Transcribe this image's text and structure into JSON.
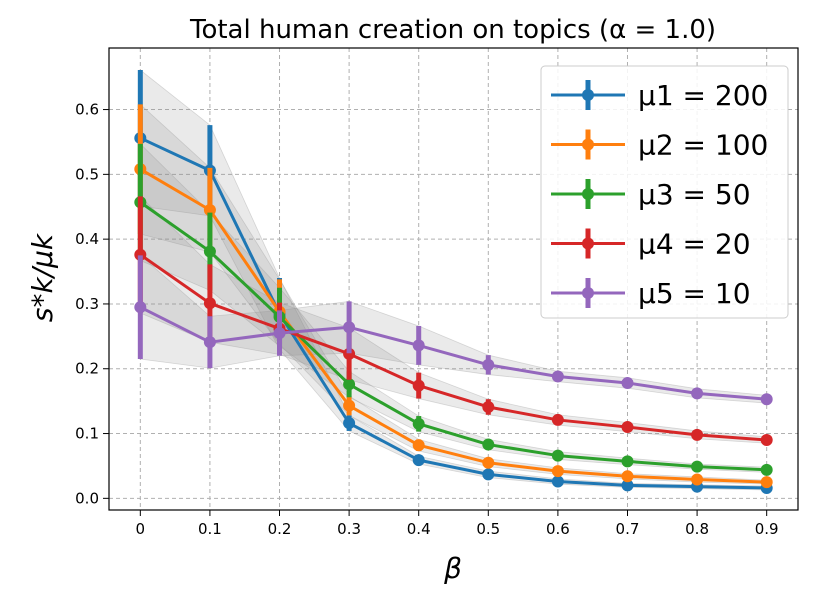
{
  "chart_data": {
    "type": "line",
    "title": "Total human creation on topics (α = 1.0)",
    "xlabel": "β",
    "ylabel": "s*k/μk",
    "x": [
      0,
      0.1,
      0.2,
      0.3,
      0.4,
      0.5,
      0.6,
      0.7,
      0.8,
      0.9
    ],
    "x_tick_labels": [
      "0",
      "0.1",
      "0.2",
      "0.3",
      "0.4",
      "0.5",
      "0.6",
      "0.7",
      "0.8",
      "0.9"
    ],
    "y_ticks": [
      0.0,
      0.1,
      0.2,
      0.3,
      0.4,
      0.5,
      0.6
    ],
    "y_tick_labels": [
      "0.0",
      "0.1",
      "0.2",
      "0.3",
      "0.4",
      "0.5",
      "0.6"
    ],
    "xlim": [
      -0.045,
      0.945
    ],
    "ylim": [
      -0.018,
      0.695
    ],
    "grid": true,
    "legend_position": "top-right",
    "series": [
      {
        "name": "μ1 = 200",
        "color": "#1f77b4",
        "values": [
          0.556,
          0.506,
          0.285,
          0.116,
          0.059,
          0.037,
          0.026,
          0.02,
          0.018,
          0.016
        ],
        "error": [
          0.105,
          0.07,
          0.055,
          0.012,
          0.006,
          0.005,
          0.004,
          0.003,
          0.003,
          0.003
        ]
      },
      {
        "name": "μ2 = 100",
        "color": "#ff7f0e",
        "values": [
          0.508,
          0.445,
          0.288,
          0.143,
          0.082,
          0.055,
          0.042,
          0.034,
          0.029,
          0.025
        ],
        "error": [
          0.1,
          0.065,
          0.05,
          0.015,
          0.009,
          0.006,
          0.005,
          0.004,
          0.004,
          0.003
        ]
      },
      {
        "name": "μ3 = 50",
        "color": "#2ca02c",
        "values": [
          0.457,
          0.381,
          0.28,
          0.176,
          0.115,
          0.083,
          0.066,
          0.057,
          0.049,
          0.044
        ],
        "error": [
          0.09,
          0.06,
          0.045,
          0.02,
          0.012,
          0.008,
          0.006,
          0.005,
          0.004,
          0.004
        ]
      },
      {
        "name": "μ4 = 20",
        "color": "#d62728",
        "values": [
          0.376,
          0.301,
          0.262,
          0.223,
          0.174,
          0.141,
          0.121,
          0.11,
          0.098,
          0.09
        ],
        "error": [
          0.09,
          0.06,
          0.04,
          0.04,
          0.02,
          0.012,
          0.008,
          0.007,
          0.006,
          0.005
        ]
      },
      {
        "name": "μ5 = 10",
        "color": "#9467bd",
        "values": [
          0.295,
          0.241,
          0.255,
          0.264,
          0.236,
          0.206,
          0.188,
          0.178,
          0.162,
          0.153
        ],
        "error": [
          0.08,
          0.04,
          0.035,
          0.04,
          0.03,
          0.015,
          0.008,
          0.008,
          0.007,
          0.006
        ]
      }
    ]
  }
}
